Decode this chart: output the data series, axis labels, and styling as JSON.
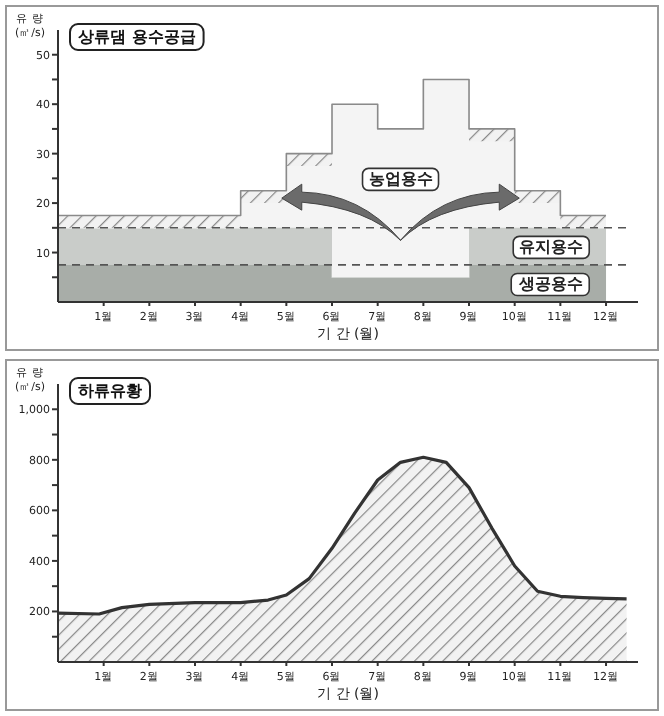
{
  "chart_data": [
    {
      "type": "area",
      "title": "상류댐 용수공급",
      "xlabel": "기 간 (월)",
      "ylabel": "유 량\n(㎥/s)",
      "stacked": true,
      "x": [
        0,
        4,
        4,
        5,
        5,
        6,
        6,
        7,
        7,
        8,
        8,
        9,
        9,
        10,
        10,
        11,
        11,
        12
      ],
      "xlim": [
        0,
        12.7
      ],
      "ylim": [
        0,
        55
      ],
      "xticks": [
        {
          "value": 1,
          "label": "1월"
        },
        {
          "value": 2,
          "label": "2월"
        },
        {
          "value": 3,
          "label": "3월"
        },
        {
          "value": 4,
          "label": "4월"
        },
        {
          "value": 5,
          "label": "5월"
        },
        {
          "value": 6,
          "label": "6월"
        },
        {
          "value": 7,
          "label": "7월"
        },
        {
          "value": 8,
          "label": "8월"
        },
        {
          "value": 9,
          "label": "9월"
        },
        {
          "value": 10,
          "label": "10월"
        },
        {
          "value": 11,
          "label": "11월"
        },
        {
          "value": 12,
          "label": "12월"
        }
      ],
      "yticks": [
        {
          "value": 5,
          "label": null
        },
        10,
        {
          "value": 15,
          "label": null
        },
        20,
        {
          "value": 25,
          "label": null
        },
        30,
        {
          "value": 35,
          "label": null
        },
        40,
        {
          "value": 45,
          "label": null
        },
        50
      ],
      "series": [
        {
          "name": "생공용수",
          "color": "#a8ada8",
          "values": [
            7.5,
            7.5,
            7.5,
            7.5,
            7.5,
            7.5,
            5,
            5,
            5,
            5,
            5,
            5,
            7.5,
            7.5,
            7.5,
            7.5,
            7.5,
            7.5
          ]
        },
        {
          "name": "유지용수",
          "color": "#c9ccc9",
          "values": [
            7.5,
            7.5,
            7.5,
            7.5,
            7.5,
            7.5,
            0,
            0,
            0,
            0,
            0,
            0,
            7.5,
            7.5,
            7.5,
            7.5,
            7.5,
            7.5
          ]
        },
        {
          "name": "농업용수",
          "color": "#f4f4f4",
          "values": [
            0,
            0,
            5,
            5,
            12.5,
            12.5,
            35,
            35,
            30,
            30,
            40,
            40,
            17.5,
            17.5,
            5,
            5,
            0,
            0
          ]
        },
        {
          "color": "#8a8a8a",
          "values": [
            2.5,
            2.5,
            2.5,
            2.5,
            2.5,
            2.5,
            0,
            0,
            0,
            0,
            0,
            0,
            2.5,
            2.5,
            2.5,
            2.5,
            2.5,
            2.5
          ]
        }
      ],
      "ref_lines": [
        {
          "axis": "y",
          "value": 7.5,
          "line_style": "dashed",
          "color": "#555555"
        },
        {
          "axis": "y",
          "value": 15,
          "line_style": "dashed",
          "color": "#555555"
        }
      ]
    },
    {
      "type": "area",
      "title": "하류유황",
      "xlabel": "기 간 (월)",
      "ylabel": "유 량\n(㎥/s)",
      "xlim": [
        0,
        12.7
      ],
      "ylim": [
        0,
        1100
      ],
      "xticks": [
        {
          "value": 1,
          "label": "1월"
        },
        {
          "value": 2,
          "label": "2월"
        },
        {
          "value": 3,
          "label": "3월"
        },
        {
          "value": 4,
          "label": "4월"
        },
        {
          "value": 5,
          "label": "5월"
        },
        {
          "value": 6,
          "label": "6월"
        },
        {
          "value": 7,
          "label": "7월"
        },
        {
          "value": 8,
          "label": "8월"
        },
        {
          "value": 9,
          "label": "9월"
        },
        {
          "value": 10,
          "label": "10월"
        },
        {
          "value": 11,
          "label": "11월"
        },
        {
          "value": 12,
          "label": "12월"
        }
      ],
      "yticks": [
        {
          "value": 100,
          "label": null
        },
        200,
        {
          "value": 300,
          "label": null
        },
        400,
        {
          "value": 500,
          "label": null
        },
        600,
        {
          "value": 700,
          "label": null
        },
        800,
        {
          "value": 900,
          "label": null
        },
        {
          "value": 1000,
          "label": "1,000"
        }
      ],
      "series": [
        {
          "color": "#333333",
          "x": [
            0,
            0.9,
            1.4,
            2,
            3,
            4,
            4.6,
            5,
            5.5,
            6,
            6.5,
            7,
            7.5,
            8,
            8.5,
            9,
            9.5,
            10,
            10.5,
            11,
            11.5,
            12,
            12.45
          ],
          "values": [
            193,
            190,
            215,
            228,
            235,
            235,
            245,
            265,
            330,
            450,
            590,
            720,
            790,
            810,
            790,
            690,
            530,
            380,
            280,
            260,
            255,
            252,
            250
          ]
        }
      ]
    }
  ]
}
